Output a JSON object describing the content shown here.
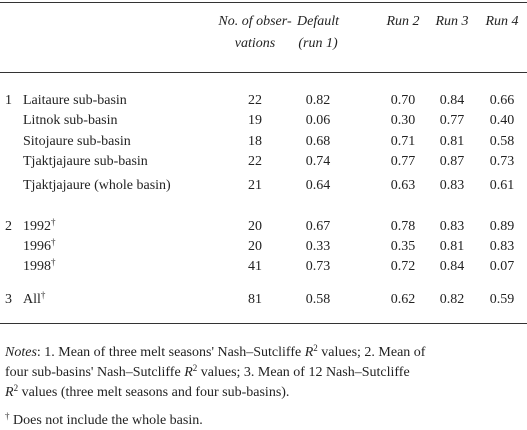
{
  "table": {
    "header": [
      [
        "No. of obser-",
        "vations"
      ],
      [
        "Default",
        "(run 1)"
      ],
      [
        "Run 2"
      ],
      [
        "Run 3"
      ],
      [
        "Run 4"
      ]
    ],
    "groups": [
      {
        "number": "1",
        "rows": [
          {
            "label": "Laitaure sub-basin",
            "values": [
              "22",
              "0.82",
              "0.70",
              "0.84",
              "0.66"
            ]
          },
          {
            "label": "Litnok sub-basin",
            "values": [
              "19",
              "0.06",
              "0.30",
              "0.77",
              "0.40"
            ]
          },
          {
            "label": "Sitojaure sub-basin",
            "values": [
              "18",
              "0.68",
              "0.71",
              "0.81",
              "0.58"
            ]
          },
          {
            "label": "Tjaktjajaure sub-basin",
            "values": [
              "22",
              "0.74",
              "0.77",
              "0.87",
              "0.73"
            ]
          },
          {
            "label": "Tjaktjajaure (whole basin)",
            "values": [
              "21",
              "0.64",
              "0.63",
              "0.83",
              "0.61"
            ]
          }
        ]
      },
      {
        "number": "2",
        "rows": [
          {
            "label": "1992",
            "sup": "†",
            "values": [
              "20",
              "0.67",
              "0.78",
              "0.83",
              "0.89"
            ]
          },
          {
            "label": "1996",
            "sup": "†",
            "values": [
              "20",
              "0.33",
              "0.35",
              "0.81",
              "0.83"
            ]
          },
          {
            "label": "1998",
            "sup": "†",
            "values": [
              "41",
              "0.73",
              "0.72",
              "0.84",
              "0.07"
            ]
          }
        ]
      },
      {
        "number": "3",
        "rows": [
          {
            "label": "All",
            "sup": "†",
            "values": [
              "81",
              "0.58",
              "0.62",
              "0.82",
              "0.59"
            ]
          }
        ]
      }
    ],
    "notes": [
      [
        {
          "text": "Notes",
          "style": "i"
        },
        {
          "text": ": 1. Mean of three melt seasons' Nash–Sutcliffe "
        },
        {
          "text": "R",
          "style": "i"
        },
        {
          "text": "2",
          "style": "sup"
        },
        {
          "text": " values; 2. Mean of"
        }
      ],
      [
        {
          "text": "four sub-basins' Nash–Sutcliffe "
        },
        {
          "text": "R",
          "style": "i"
        },
        {
          "text": "2",
          "style": "sup"
        },
        {
          "text": " values; 3. Mean of 12 Nash–Sutcliffe"
        }
      ],
      [
        {
          "text": "R",
          "style": "i"
        },
        {
          "text": "2",
          "style": "sup"
        },
        {
          "text": " values (three melt seasons and four sub-basins)."
        }
      ]
    ],
    "footnote": [
      {
        "text": "†",
        "style": "sup"
      },
      {
        "text": " Does not include the whole basin."
      }
    ]
  }
}
